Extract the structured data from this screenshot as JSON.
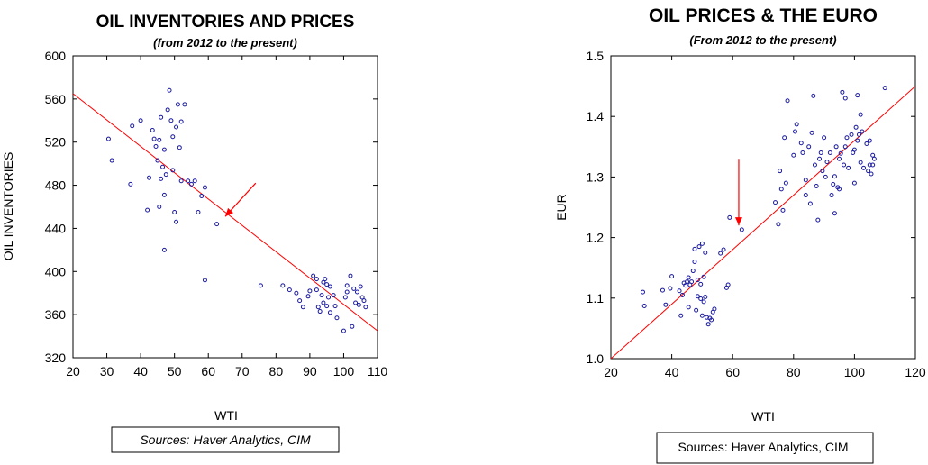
{
  "chart_data": [
    {
      "type": "scatter",
      "title": "OIL INVENTORIES AND PRICES",
      "subtitle": "(from 2012 to the present)",
      "xlabel": "WTI",
      "ylabel": "OIL INVENTORIES",
      "xlim": [
        20,
        110
      ],
      "ylim": [
        320,
        600
      ],
      "xticks": [
        "20",
        "30",
        "40",
        "50",
        "60",
        "70",
        "80",
        "90",
        "100",
        "110"
      ],
      "yticks": [
        "600",
        "560",
        "520",
        "480",
        "440",
        "400",
        "360",
        "320"
      ],
      "source": "Sources:  Haver Analytics, CIM",
      "grid": false,
      "point_color": "#1a1aa0",
      "trend_color": "#ff0000",
      "trendline": [
        [
          20,
          565
        ],
        [
          110,
          345
        ]
      ],
      "arrow": {
        "from": [
          74,
          482
        ],
        "to": [
          65,
          451
        ]
      },
      "points": [
        [
          30.5,
          523
        ],
        [
          31.5,
          503
        ],
        [
          37,
          481
        ],
        [
          37.5,
          535
        ],
        [
          40,
          540
        ],
        [
          42,
          457
        ],
        [
          42.5,
          487
        ],
        [
          43.5,
          531
        ],
        [
          44,
          523
        ],
        [
          44.5,
          516
        ],
        [
          45,
          503
        ],
        [
          45.5,
          460
        ],
        [
          45.5,
          522
        ],
        [
          46,
          486
        ],
        [
          46,
          543
        ],
        [
          46.5,
          497
        ],
        [
          47,
          471
        ],
        [
          47,
          513
        ],
        [
          47,
          420
        ],
        [
          47.5,
          490
        ],
        [
          48,
          550
        ],
        [
          48.5,
          568
        ],
        [
          49,
          540
        ],
        [
          49.5,
          525
        ],
        [
          49.5,
          494
        ],
        [
          50,
          455
        ],
        [
          50.5,
          446
        ],
        [
          50.5,
          534
        ],
        [
          51,
          555
        ],
        [
          51.5,
          515
        ],
        [
          52,
          539
        ],
        [
          52,
          484
        ],
        [
          53,
          555
        ],
        [
          54,
          484
        ],
        [
          55,
          481
        ],
        [
          56,
          484
        ],
        [
          57,
          455
        ],
        [
          58,
          470
        ],
        [
          59,
          478
        ],
        [
          59,
          392
        ],
        [
          62.5,
          444
        ],
        [
          75.5,
          387
        ],
        [
          82,
          387
        ],
        [
          84,
          383
        ],
        [
          86,
          380
        ],
        [
          87,
          373
        ],
        [
          88,
          367
        ],
        [
          89.5,
          377
        ],
        [
          90,
          382
        ],
        [
          91,
          396
        ],
        [
          92,
          393
        ],
        [
          92,
          383
        ],
        [
          92.5,
          367
        ],
        [
          93,
          363
        ],
        [
          93.5,
          378
        ],
        [
          94,
          390
        ],
        [
          94,
          371
        ],
        [
          94.5,
          393
        ],
        [
          95,
          368
        ],
        [
          95,
          388
        ],
        [
          95.5,
          376
        ],
        [
          96,
          386
        ],
        [
          96,
          362
        ],
        [
          97,
          378
        ],
        [
          97.5,
          368
        ],
        [
          98,
          357
        ],
        [
          100,
          345
        ],
        [
          100.5,
          376
        ],
        [
          101,
          381
        ],
        [
          101,
          387
        ],
        [
          102,
          396
        ],
        [
          102.5,
          349
        ],
        [
          103,
          384
        ],
        [
          103.5,
          371
        ],
        [
          104,
          381
        ],
        [
          104.5,
          369
        ],
        [
          105,
          386
        ],
        [
          105.5,
          376
        ],
        [
          106,
          373
        ],
        [
          106.5,
          367
        ]
      ]
    },
    {
      "type": "scatter",
      "title": "OIL PRICES & THE EURO",
      "subtitle": "(From 2012 to the present)",
      "xlabel": "WTI",
      "ylabel": "EUR",
      "xlim": [
        20,
        120
      ],
      "ylim": [
        1.0,
        1.5
      ],
      "xticks": [
        "20",
        "40",
        "60",
        "80",
        "100",
        "120"
      ],
      "yticks": [
        "1.5",
        "1.4",
        "1.3",
        "1.2",
        "1.1",
        "1.0"
      ],
      "source": "Sources:  Haver Analytics, CIM",
      "grid": false,
      "point_color": "#1a1aa0",
      "trend_color": "#ff0000",
      "trendline": [
        [
          20,
          1.0
        ],
        [
          120,
          1.45
        ]
      ],
      "arrow": {
        "from": [
          62,
          1.33
        ],
        "to": [
          62,
          1.22
        ]
      },
      "points": [
        [
          30.5,
          1.11
        ],
        [
          31,
          1.087
        ],
        [
          37,
          1.113
        ],
        [
          38,
          1.089
        ],
        [
          39.5,
          1.116
        ],
        [
          40,
          1.136
        ],
        [
          42.5,
          1.112
        ],
        [
          43,
          1.071
        ],
        [
          43.5,
          1.105
        ],
        [
          44,
          1.125
        ],
        [
          44.5,
          1.121
        ],
        [
          45,
          1.127
        ],
        [
          45.5,
          1.085
        ],
        [
          45.5,
          1.134
        ],
        [
          46,
          1.122
        ],
        [
          46.5,
          1.127
        ],
        [
          47,
          1.145
        ],
        [
          47.5,
          1.16
        ],
        [
          47.5,
          1.181
        ],
        [
          48,
          1.08
        ],
        [
          48.5,
          1.103
        ],
        [
          48.5,
          1.13
        ],
        [
          49,
          1.185
        ],
        [
          49.5,
          1.123
        ],
        [
          49.5,
          1.099
        ],
        [
          50,
          1.19
        ],
        [
          50,
          1.071
        ],
        [
          50.5,
          1.135
        ],
        [
          50.5,
          1.094
        ],
        [
          51,
          1.175
        ],
        [
          51,
          1.102
        ],
        [
          51.5,
          1.068
        ],
        [
          52,
          1.057
        ],
        [
          52.5,
          1.067
        ],
        [
          53,
          1.064
        ],
        [
          53.5,
          1.077
        ],
        [
          54,
          1.082
        ],
        [
          56,
          1.174
        ],
        [
          57,
          1.18
        ],
        [
          58,
          1.117
        ],
        [
          58.5,
          1.122
        ],
        [
          59,
          1.233
        ],
        [
          63,
          1.213
        ],
        [
          74,
          1.258
        ],
        [
          75,
          1.222
        ],
        [
          75.5,
          1.31
        ],
        [
          76,
          1.28
        ],
        [
          76.5,
          1.245
        ],
        [
          77,
          1.365
        ],
        [
          77.5,
          1.29
        ],
        [
          78,
          1.426
        ],
        [
          80,
          1.336
        ],
        [
          80.5,
          1.375
        ],
        [
          81,
          1.387
        ],
        [
          82.5,
          1.356
        ],
        [
          83,
          1.34
        ],
        [
          84,
          1.27
        ],
        [
          84,
          1.295
        ],
        [
          85,
          1.35
        ],
        [
          85.5,
          1.256
        ],
        [
          86,
          1.373
        ],
        [
          86.5,
          1.434
        ],
        [
          87,
          1.32
        ],
        [
          87.5,
          1.285
        ],
        [
          88,
          1.229
        ],
        [
          88.5,
          1.33
        ],
        [
          89,
          1.34
        ],
        [
          89.5,
          1.31
        ],
        [
          90,
          1.365
        ],
        [
          90.5,
          1.3
        ],
        [
          91,
          1.325
        ],
        [
          92,
          1.34
        ],
        [
          92.5,
          1.27
        ],
        [
          93,
          1.288
        ],
        [
          93.5,
          1.301
        ],
        [
          93.5,
          1.24
        ],
        [
          94,
          1.35
        ],
        [
          94.5,
          1.283
        ],
        [
          95,
          1.33
        ],
        [
          95,
          1.28
        ],
        [
          95.5,
          1.339
        ],
        [
          96,
          1.44
        ],
        [
          96.5,
          1.32
        ],
        [
          97,
          1.35
        ],
        [
          97,
          1.43
        ],
        [
          97.5,
          1.365
        ],
        [
          98,
          1.315
        ],
        [
          99,
          1.37
        ],
        [
          99.5,
          1.34
        ],
        [
          100,
          1.29
        ],
        [
          100,
          1.345
        ],
        [
          100.5,
          1.382
        ],
        [
          101,
          1.36
        ],
        [
          101,
          1.435
        ],
        [
          101.5,
          1.37
        ],
        [
          102,
          1.324
        ],
        [
          102,
          1.403
        ],
        [
          102.5,
          1.375
        ],
        [
          103,
          1.315
        ],
        [
          104,
          1.355
        ],
        [
          104.5,
          1.31
        ],
        [
          105,
          1.32
        ],
        [
          105,
          1.36
        ],
        [
          105.5,
          1.305
        ],
        [
          106,
          1.336
        ],
        [
          106,
          1.32
        ],
        [
          106.5,
          1.33
        ],
        [
          110,
          1.447
        ]
      ]
    }
  ]
}
